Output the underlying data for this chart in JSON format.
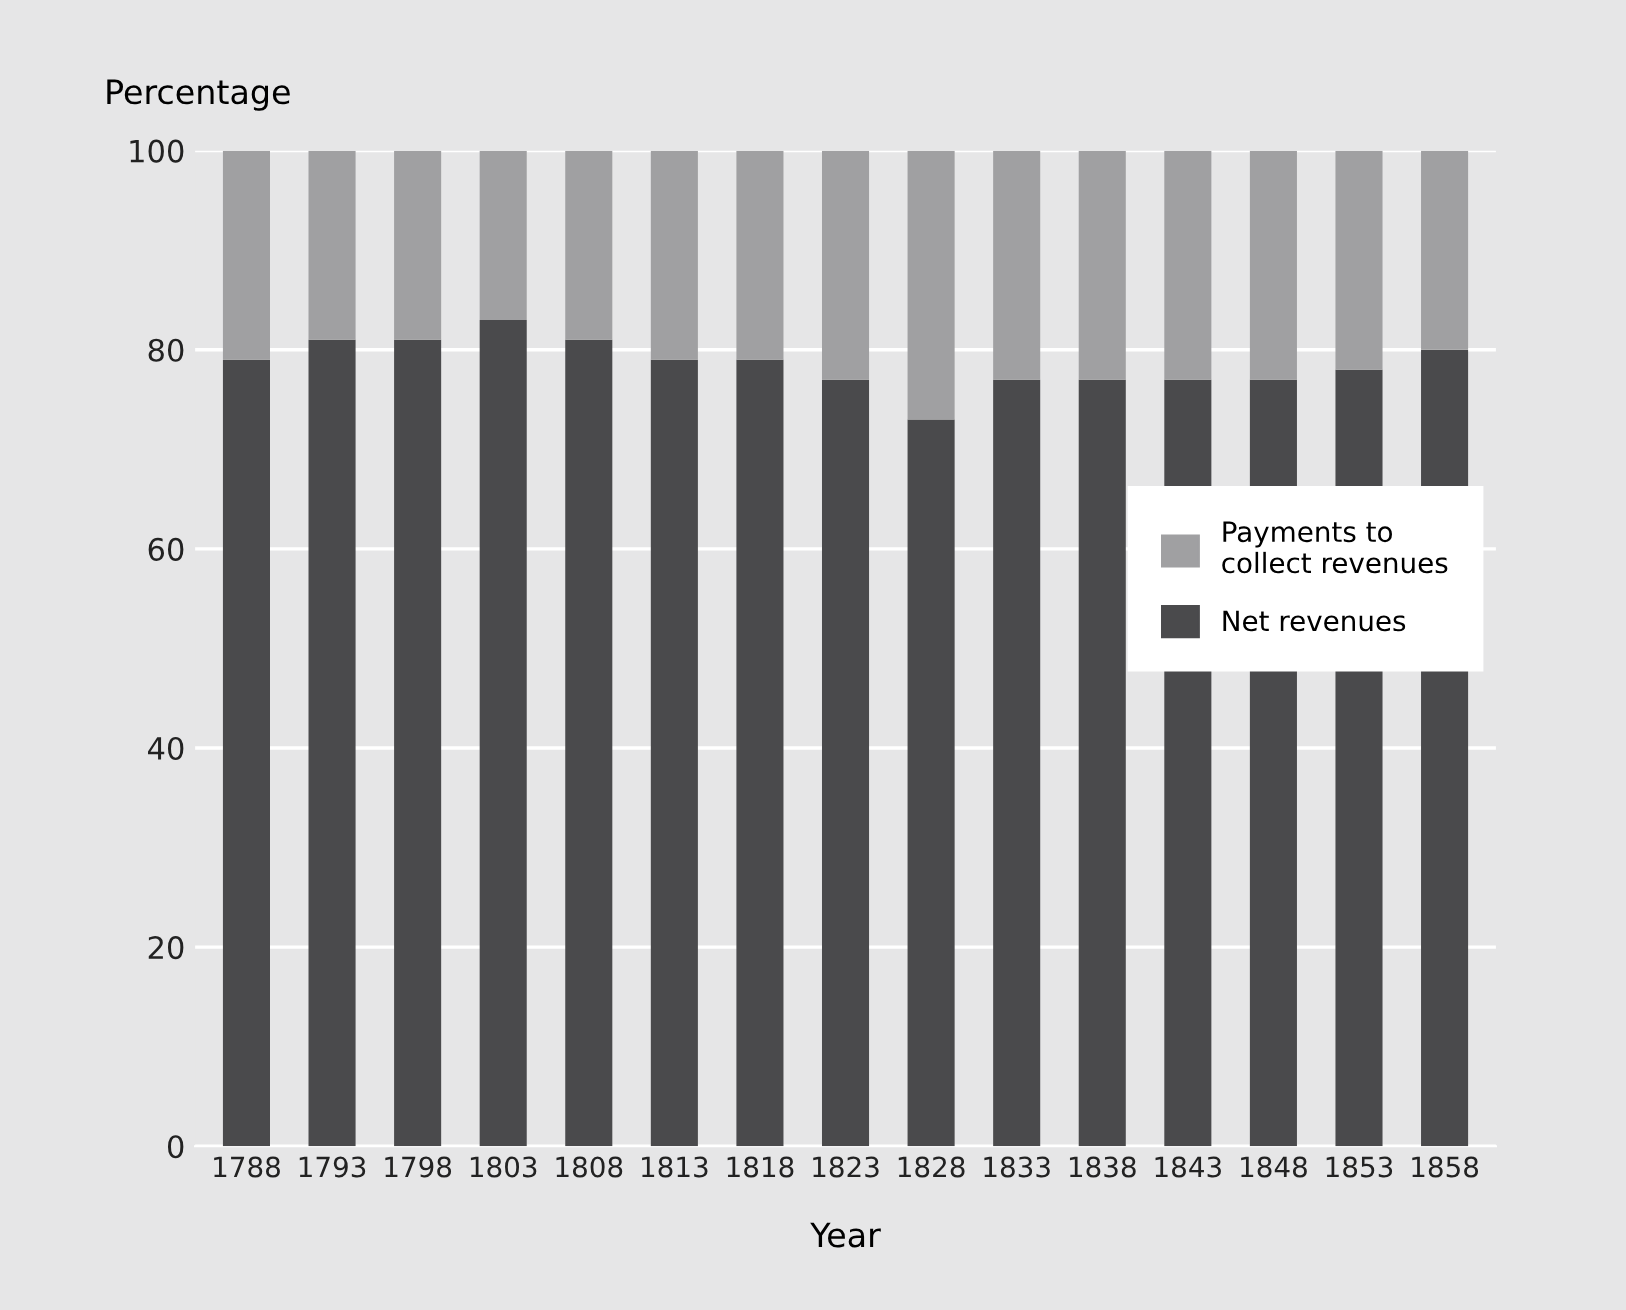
{
  "chart_data": {
    "type": "bar",
    "stacked": true,
    "xlabel": "Year",
    "ylabel": "Percentage",
    "categories": [
      "1788",
      "1793",
      "1798",
      "1803",
      "1808",
      "1813",
      "1818",
      "1823",
      "1828",
      "1833",
      "1838",
      "1843",
      "1848",
      "1853",
      "1858"
    ],
    "series": [
      {
        "name": "Net revenues",
        "color": "#4a4a4c",
        "values": [
          79,
          81,
          81,
          83,
          81,
          79,
          79,
          77,
          73,
          77,
          77,
          77,
          77,
          78,
          80
        ]
      },
      {
        "name": "Payments to\ncollect revenues",
        "color": "#a0a0a2",
        "values": [
          21,
          19,
          19,
          17,
          19,
          21,
          21,
          23,
          27,
          23,
          23,
          23,
          23,
          22,
          20
        ]
      }
    ],
    "ylim": [
      0,
      100
    ],
    "yticks": [
      0,
      20,
      40,
      60,
      80,
      100
    ],
    "grid": "y",
    "legend": "right"
  }
}
